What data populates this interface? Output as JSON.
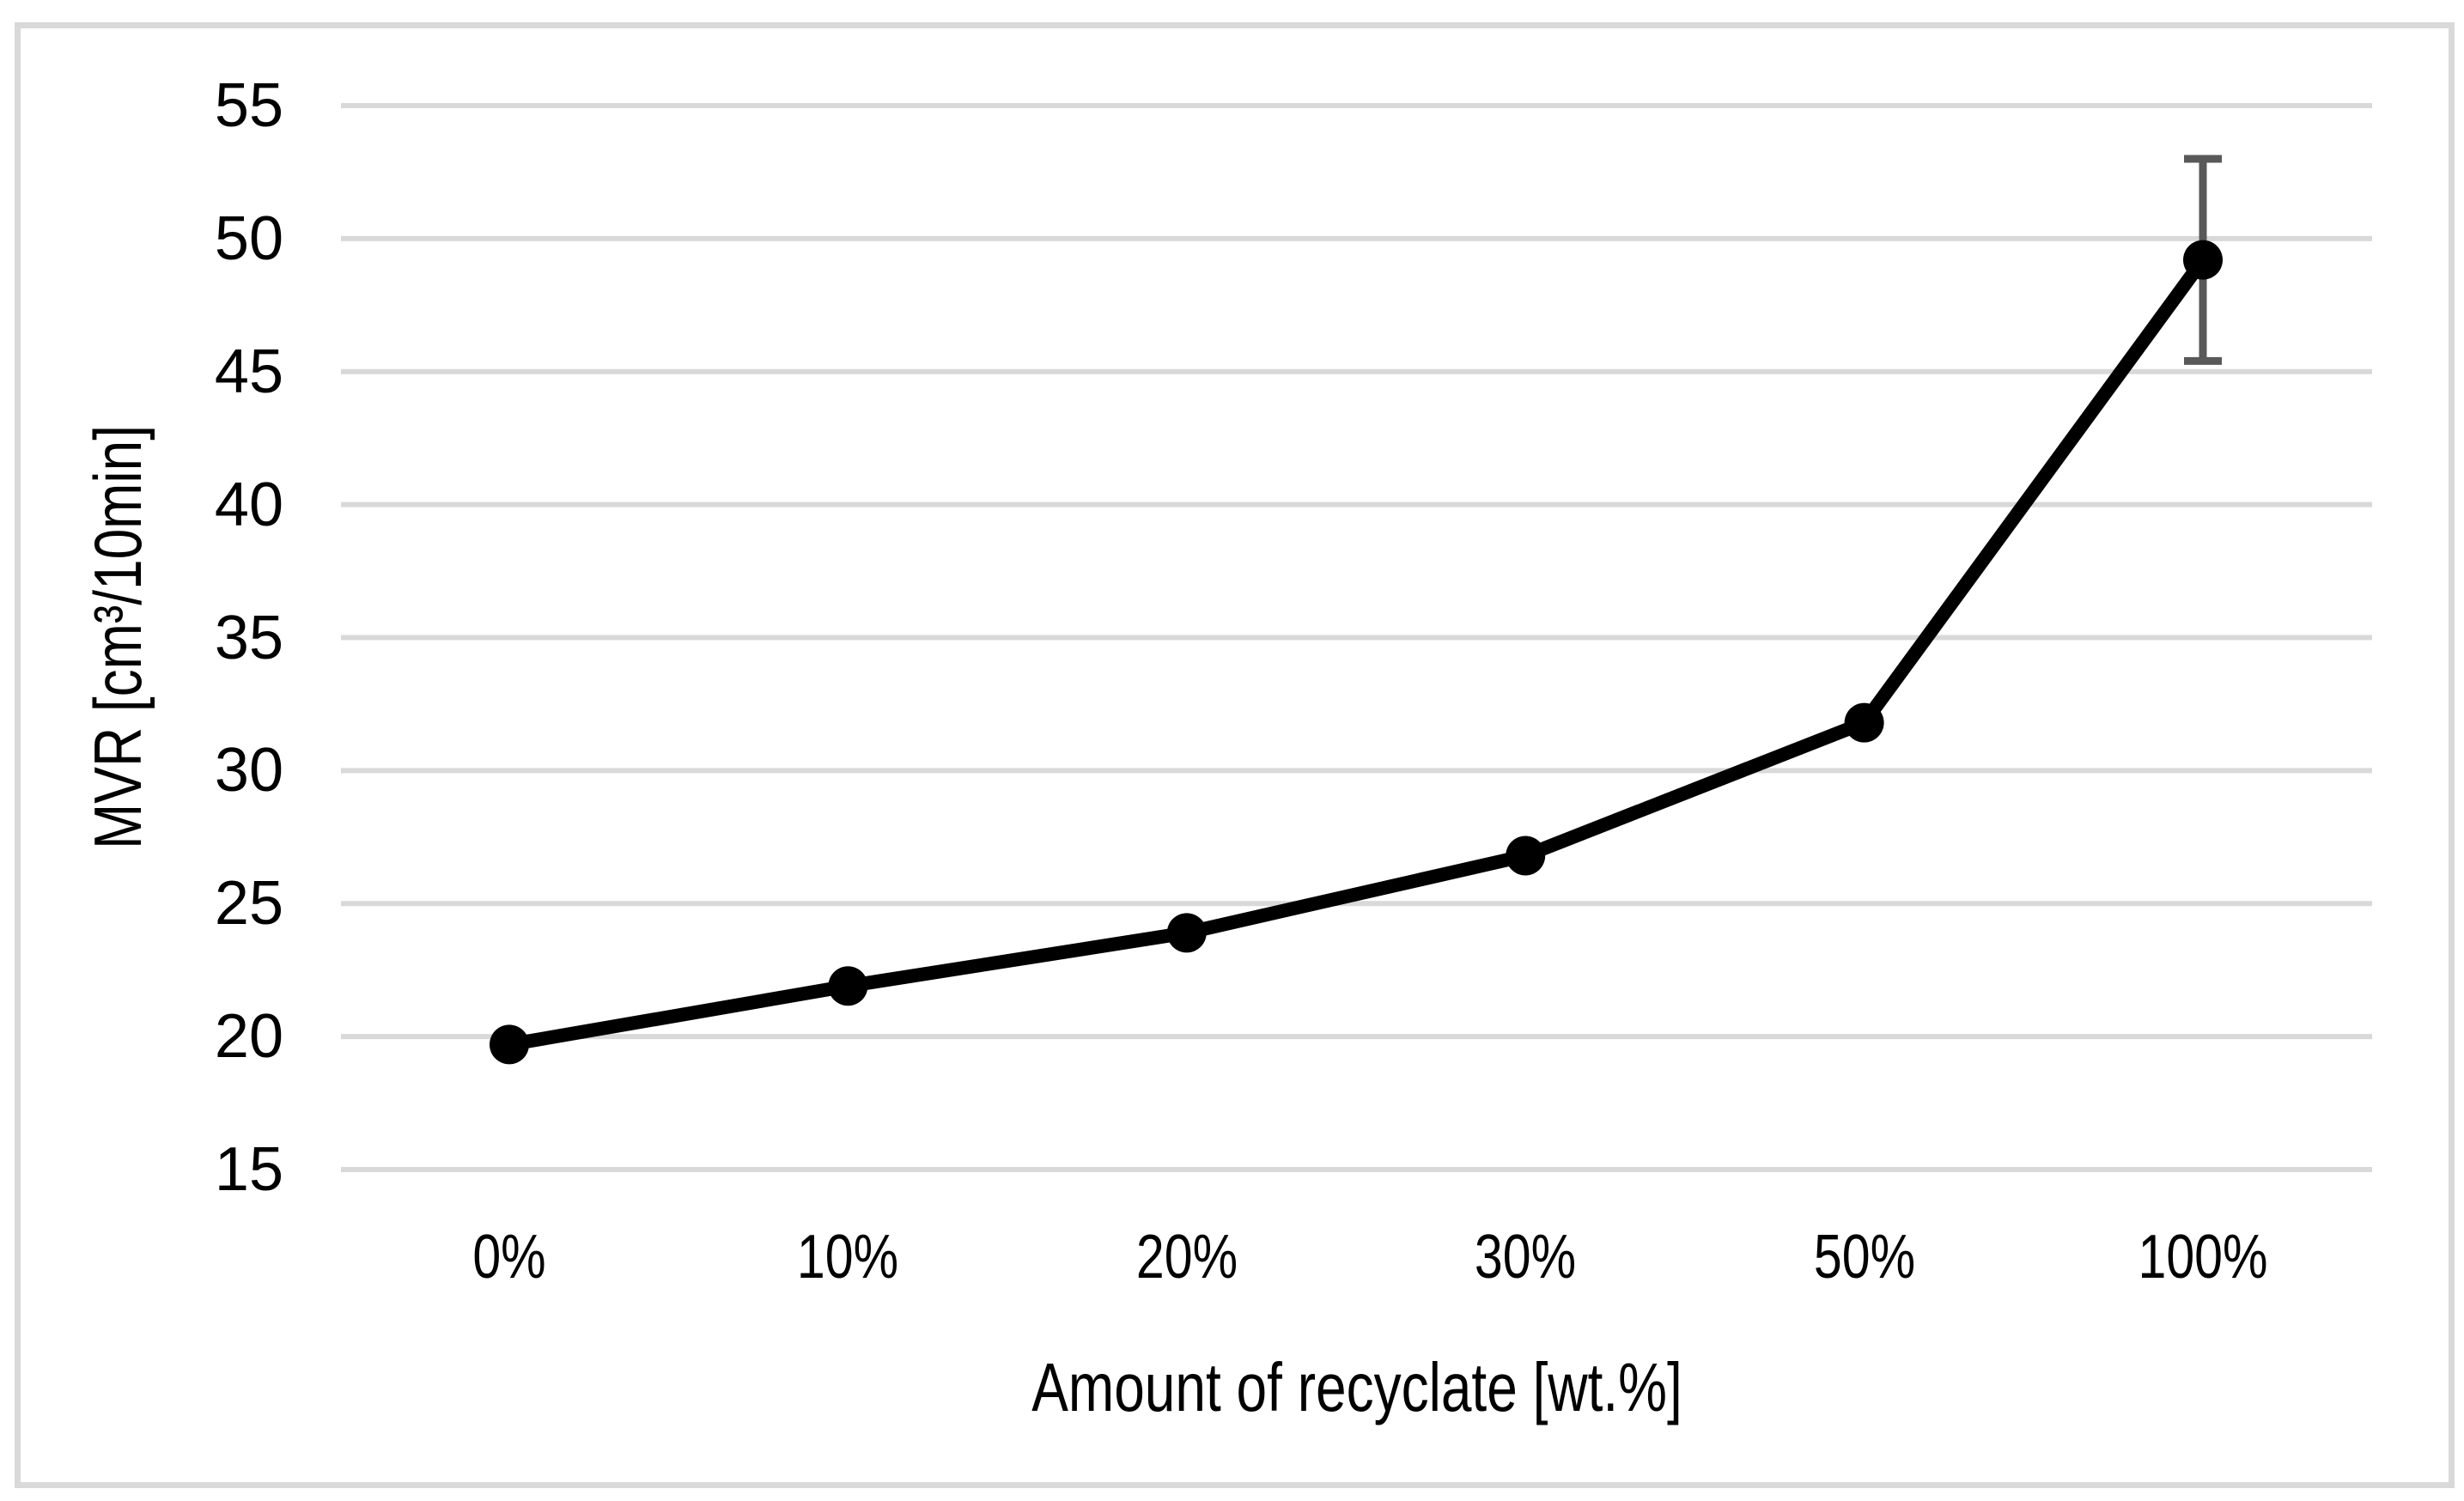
{
  "chart_data": {
    "type": "line",
    "title": "",
    "xlabel": "Amount of recyclate [wt.%]",
    "ylabel": "MVR [cm³/10min]",
    "categories": [
      "0%",
      "10%",
      "20%",
      "30%",
      "50%",
      "100%"
    ],
    "series": [
      {
        "name": "MVR",
        "values": [
          19.7,
          21.9,
          23.9,
          26.8,
          31.8,
          49.2
        ]
      }
    ],
    "error_bars": {
      "point_index": 5,
      "plus": 3.8,
      "minus": 3.8,
      "upper_value": 53.0,
      "lower_value": 45.4
    },
    "ylim": [
      15,
      55
    ],
    "yticks": [
      15,
      20,
      25,
      30,
      35,
      40,
      45,
      50,
      55
    ],
    "grid": "horizontal",
    "legend": "none",
    "marker": "filled-circle",
    "colors": {
      "line": "#000000",
      "marker": "#000000",
      "error_bar": "#595959",
      "gridline": "#d9d9d9",
      "frame_border": "#d9d9d9",
      "text": "#000000",
      "background": "#ffffff"
    }
  }
}
